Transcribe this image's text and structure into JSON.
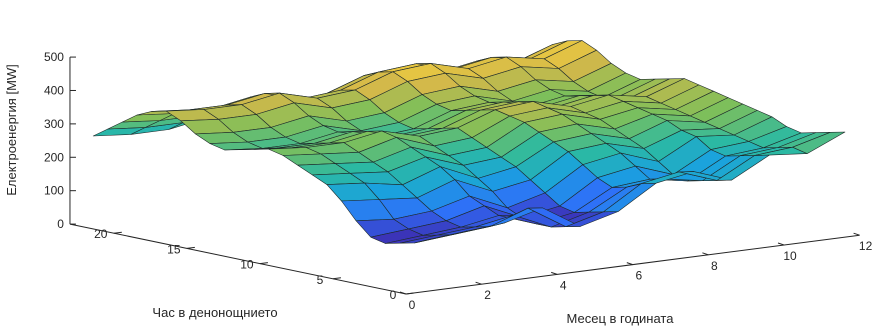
{
  "chart_data": {
    "type": "surface",
    "zlabel": "Електроенергия [MW]",
    "xlabel": "Месец в годината",
    "ylabel": "Час в денонощнието",
    "x_ticks": [
      "0",
      "2",
      "4",
      "6",
      "8",
      "10",
      "12"
    ],
    "y_ticks": [
      "0",
      "5",
      "10",
      "15",
      "20"
    ],
    "z_ticks": [
      "0",
      "100",
      "200",
      "300",
      "400",
      "500"
    ],
    "xlim": [
      0,
      12
    ],
    "ylim": [
      0,
      23
    ],
    "zlim": [
      0,
      500
    ],
    "colormap": [
      "#3e26a8",
      "#2f6ef9",
      "#1aa2de",
      "#2bb9a3",
      "#80bf59",
      "#d2b84a",
      "#f7d13c"
    ],
    "months": [
      1,
      2,
      3,
      4,
      5,
      6,
      7,
      8,
      9,
      10,
      11,
      12
    ],
    "hours": [
      1,
      2,
      3,
      4,
      5,
      6,
      7,
      8,
      9,
      10,
      11,
      12,
      13,
      14,
      15,
      16,
      17,
      18,
      19,
      20,
      21,
      22,
      23,
      24
    ],
    "values": [
      [
        140,
        150,
        160,
        190,
        120,
        150,
        220,
        240,
        200,
        260,
        250,
        300
      ],
      [
        120,
        130,
        140,
        180,
        110,
        140,
        210,
        230,
        190,
        250,
        260,
        290
      ],
      [
        110,
        120,
        130,
        150,
        100,
        130,
        190,
        200,
        180,
        240,
        250,
        280
      ],
      [
        100,
        110,
        120,
        140,
        100,
        120,
        180,
        190,
        170,
        230,
        240,
        270
      ],
      [
        110,
        120,
        130,
        160,
        110,
        130,
        200,
        220,
        180,
        240,
        250,
        280
      ],
      [
        150,
        140,
        150,
        180,
        130,
        160,
        230,
        250,
        210,
        270,
        260,
        300
      ],
      [
        200,
        190,
        180,
        220,
        170,
        190,
        260,
        270,
        240,
        280,
        270,
        310
      ],
      [
        240,
        230,
        210,
        250,
        200,
        220,
        280,
        290,
        260,
        300,
        280,
        320
      ],
      [
        260,
        250,
        240,
        270,
        230,
        240,
        300,
        310,
        280,
        310,
        290,
        330
      ],
      [
        280,
        270,
        260,
        290,
        250,
        260,
        320,
        330,
        300,
        320,
        300,
        340
      ],
      [
        300,
        290,
        280,
        310,
        270,
        280,
        330,
        340,
        310,
        330,
        310,
        350
      ],
      [
        310,
        300,
        300,
        320,
        290,
        300,
        340,
        350,
        320,
        340,
        320,
        360
      ],
      [
        300,
        290,
        290,
        310,
        280,
        290,
        330,
        340,
        310,
        330,
        310,
        350
      ],
      [
        290,
        280,
        280,
        300,
        270,
        280,
        320,
        330,
        300,
        320,
        300,
        340
      ],
      [
        280,
        270,
        270,
        290,
        260,
        270,
        310,
        320,
        290,
        310,
        290,
        330
      ],
      [
        290,
        280,
        280,
        300,
        270,
        280,
        320,
        330,
        300,
        320,
        300,
        340
      ],
      [
        310,
        300,
        300,
        320,
        290,
        300,
        340,
        350,
        320,
        340,
        320,
        360
      ],
      [
        340,
        330,
        330,
        350,
        320,
        330,
        370,
        380,
        350,
        370,
        350,
        390
      ],
      [
        360,
        350,
        350,
        370,
        340,
        350,
        390,
        400,
        370,
        390,
        370,
        410
      ],
      [
        350,
        340,
        340,
        360,
        330,
        340,
        380,
        390,
        360,
        380,
        360,
        400
      ],
      [
        330,
        320,
        320,
        340,
        310,
        320,
        360,
        370,
        340,
        360,
        340,
        380
      ],
      [
        300,
        290,
        290,
        310,
        280,
        290,
        330,
        340,
        310,
        330,
        310,
        350
      ],
      [
        270,
        260,
        260,
        280,
        250,
        260,
        300,
        310,
        280,
        300,
        280,
        320
      ],
      [
        240,
        230,
        230,
        250,
        220,
        230,
        270,
        280,
        250,
        270,
        250,
        290
      ]
    ]
  }
}
